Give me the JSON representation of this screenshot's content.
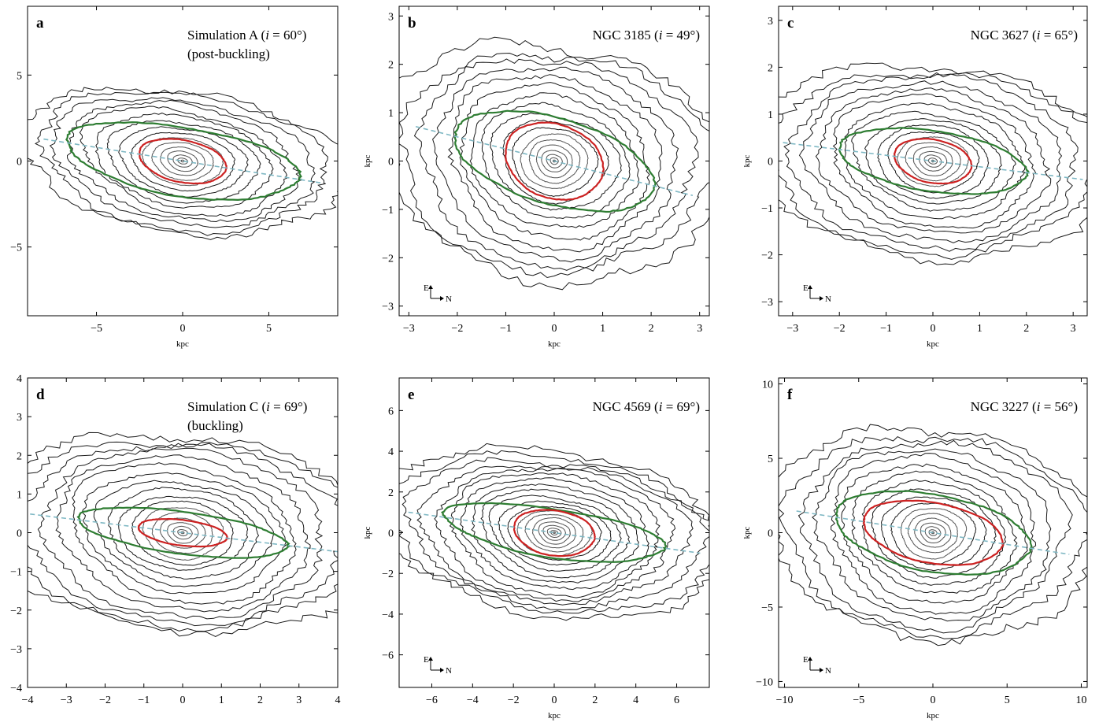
{
  "figure": {
    "panel_count": 6
  },
  "colors": {
    "contour": "#1a1a1a",
    "contour_inner": "#555555",
    "green_isophote": "#2e7d32",
    "red_isophote": "#cc2222",
    "bar_axis_dashed": "#7fb8c4",
    "frame": "#000000"
  },
  "chart_data": [
    {
      "type": "contour",
      "panel": "a",
      "title_line1_prefix": "Simulation A (",
      "title_i": "i",
      "title_line1_suffix": " = 60°)",
      "title_line2": "(post-buckling)",
      "xlabel": "kpc",
      "ylabel": "",
      "xlim": [
        -9,
        9
      ],
      "ylim": [
        -9,
        9
      ],
      "xticks": [
        -5,
        0,
        5
      ],
      "yticks": [
        -5,
        0,
        5
      ],
      "xticklabels": [
        "−5",
        "0",
        "5"
      ],
      "yticklabels": [
        "−5",
        "0",
        "5"
      ],
      "bar_pa_deg": -9,
      "outer_a": 8.6,
      "outer_q": 0.42,
      "n_contours": 16,
      "green": {
        "a": 6.8,
        "b": 2.0
      },
      "red": {
        "a": 2.6,
        "b": 1.2
      },
      "compass": null
    },
    {
      "type": "contour",
      "panel": "b",
      "title_line1_prefix": "NGC 3185 (",
      "title_i": "i",
      "title_line1_suffix": " = 49°)",
      "title_line2": "",
      "xlabel": "kpc",
      "ylabel": "kpc",
      "xlim": [
        -3.2,
        3.2
      ],
      "ylim": [
        -3.2,
        3.2
      ],
      "xticks": [
        -3,
        -2,
        -1,
        0,
        1,
        2,
        3
      ],
      "yticks": [
        -3,
        -2,
        -1,
        0,
        1,
        2,
        3
      ],
      "xticklabels": [
        "−3",
        "−2",
        "−1",
        "0",
        "1",
        "2",
        "3"
      ],
      "yticklabels": [
        "−3",
        "−2",
        "−1",
        "0",
        "1",
        "2",
        "3"
      ],
      "bar_pa_deg": -14,
      "outer_a": 3.1,
      "outer_q": 0.72,
      "n_contours": 18,
      "green": {
        "a": 2.1,
        "b": 0.9
      },
      "red": {
        "a": 1.05,
        "b": 0.75
      },
      "compass": {
        "e": "E",
        "n": "N"
      }
    },
    {
      "type": "contour",
      "panel": "c",
      "title_line1_prefix": "NGC 3627 (",
      "title_i": "i",
      "title_line1_suffix": " = 65°)",
      "title_line2": "",
      "xlabel": "kpc",
      "ylabel": "kpc",
      "xlim": [
        -3.3,
        3.3
      ],
      "ylim": [
        -3.3,
        3.3
      ],
      "xticks": [
        -3,
        -2,
        -1,
        0,
        1,
        2,
        3
      ],
      "yticks": [
        -3,
        -2,
        -1,
        0,
        1,
        2,
        3
      ],
      "xticklabels": [
        "−3",
        "−2",
        "−1",
        "0",
        "1",
        "2",
        "3"
      ],
      "yticklabels": [
        "−3",
        "−2",
        "−1",
        "0",
        "1",
        "2",
        "3"
      ],
      "bar_pa_deg": -7,
      "outer_a": 3.4,
      "outer_q": 0.55,
      "n_contours": 18,
      "green": {
        "a": 2.0,
        "b": 0.65
      },
      "red": {
        "a": 0.85,
        "b": 0.45
      },
      "compass": {
        "e": "E",
        "n": "N"
      }
    },
    {
      "type": "contour",
      "panel": "d",
      "title_line1_prefix": "Simulation C (",
      "title_i": "i",
      "title_line1_suffix": " = 69°)",
      "title_line2": "(buckling)",
      "xlabel": "",
      "ylabel": "",
      "xlim": [
        -4,
        4
      ],
      "ylim": [
        -4,
        4
      ],
      "xticks": [
        -4,
        -3,
        -2,
        -1,
        0,
        1,
        2,
        3,
        4
      ],
      "yticks": [
        -4,
        -3,
        -2,
        -1,
        0,
        1,
        2,
        3,
        4
      ],
      "xticklabels": [
        "−4",
        "−3",
        "−2",
        "−1",
        "0",
        "1",
        "2",
        "3",
        "4"
      ],
      "yticklabels": [
        "−4",
        "−3",
        "−2",
        "−1",
        "0",
        "1",
        "2",
        "3",
        "4"
      ],
      "bar_pa_deg": -7,
      "outer_a": 4.6,
      "outer_q": 0.5,
      "n_contours": 18,
      "green": {
        "a": 2.7,
        "b": 0.55
      },
      "red": {
        "a": 1.15,
        "b": 0.33
      },
      "compass": null
    },
    {
      "type": "contour",
      "panel": "e",
      "title_line1_prefix": "NGC 4569 (",
      "title_i": "i",
      "title_line1_suffix": " = 69°)",
      "title_line2": "",
      "xlabel": "kpc",
      "ylabel": "kpc",
      "xlim": [
        -7.6,
        7.6
      ],
      "ylim": [
        -7.6,
        7.6
      ],
      "xticks": [
        -6,
        -4,
        -2,
        0,
        2,
        4,
        6
      ],
      "yticks": [
        -6,
        -4,
        -2,
        0,
        2,
        4,
        6
      ],
      "xticklabels": [
        "−6",
        "−4",
        "−2",
        "0",
        "2",
        "4",
        "6"
      ],
      "yticklabels": [
        "−6",
        "−4",
        "−2",
        "0",
        "2",
        "4",
        "6"
      ],
      "bar_pa_deg": -8,
      "outer_a": 7.6,
      "outer_q": 0.48,
      "n_contours": 20,
      "green": {
        "a": 5.4,
        "b": 1.2
      },
      "red": {
        "a": 2.0,
        "b": 1.1
      },
      "compass": {
        "e": "E",
        "n": "N"
      }
    },
    {
      "type": "contour",
      "panel": "f",
      "title_line1_prefix": "NGC 3227 (",
      "title_i": "i",
      "title_line1_suffix": " = 56°)",
      "title_line2": "",
      "xlabel": "kpc",
      "ylabel": "kpc",
      "xlim": [
        -10.4,
        10.4
      ],
      "ylim": [
        -10.4,
        10.4
      ],
      "xticks": [
        -10,
        -5,
        0,
        5,
        10
      ],
      "yticks": [
        -10,
        -5,
        0,
        5,
        10
      ],
      "xticklabels": [
        "−10",
        "−5",
        "0",
        "5",
        "10"
      ],
      "yticklabels": [
        "−10",
        "−5",
        "0",
        "5",
        "10"
      ],
      "bar_pa_deg": -9,
      "outer_a": 9.8,
      "outer_q": 0.66,
      "n_contours": 18,
      "green": {
        "a": 6.6,
        "b": 2.6
      },
      "red": {
        "a": 4.8,
        "b": 2.0
      },
      "compass": {
        "e": "E",
        "n": "N"
      }
    }
  ]
}
